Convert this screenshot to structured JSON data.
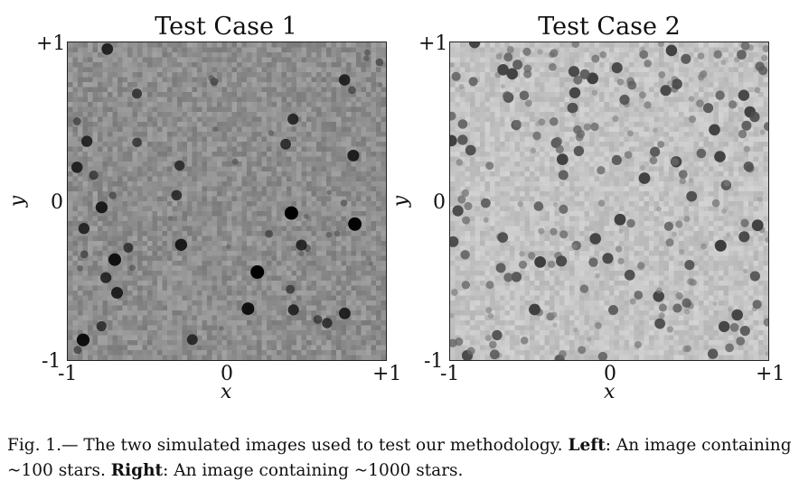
{
  "panels": [
    {
      "title": "Test Case 1",
      "xlabel": "x",
      "ylabel": "y",
      "xticks": [
        "-1",
        "0",
        "+1"
      ],
      "yticks": [
        "+1",
        "0",
        "-1"
      ],
      "background_gray": "#8e8e8e",
      "noise_range": 40,
      "stars": 100
    },
    {
      "title": "Test Case 2",
      "xlabel": "x",
      "ylabel": "y",
      "xticks": [
        "-1",
        "0",
        "+1"
      ],
      "yticks": [
        "+1",
        "0",
        "-1"
      ],
      "background_gray": "#c4c4c4",
      "noise_range": 30,
      "stars": 1000
    }
  ],
  "caption": {
    "prefix": "Fig. 1.— The two simulated images used to test our methodology. ",
    "left_label": "Left",
    "left_text": ": An image containing ~100 stars. ",
    "right_label": "Right",
    "right_text": ": An image containing ~1000 stars."
  }
}
